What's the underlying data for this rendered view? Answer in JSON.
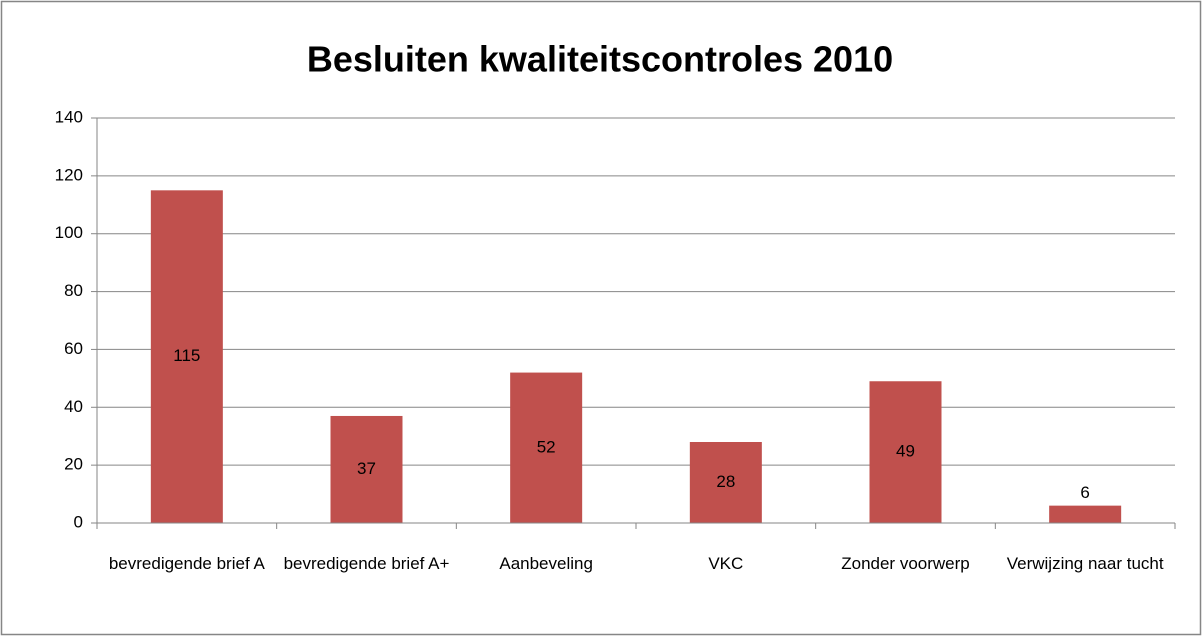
{
  "chart_data": {
    "type": "bar",
    "title": "Besluiten kwaliteitscontroles 2010",
    "categories": [
      "bevredigende brief A",
      "bevredigende brief A+",
      "Aanbeveling",
      "VKC",
      "Zonder voorwerp",
      "Verwijzing naar tucht"
    ],
    "values": [
      115,
      37,
      52,
      28,
      49,
      6
    ],
    "color": "#c0504d",
    "ylim": [
      0,
      140
    ],
    "yticks": [
      0,
      20,
      40,
      60,
      80,
      100,
      120,
      140
    ],
    "grid": true
  }
}
